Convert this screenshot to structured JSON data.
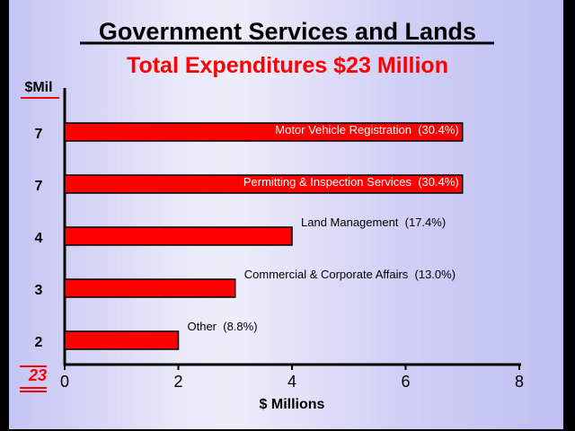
{
  "chart_data": {
    "type": "bar",
    "orientation": "horizontal",
    "title": "Government Services and Lands",
    "subtitle": "Total Expenditures $23 Million",
    "xlabel": "$ Millions",
    "ylabel": "$Mil",
    "xlim": [
      0,
      8
    ],
    "xticks": [
      "0",
      "2",
      "4",
      "6",
      "8"
    ],
    "categories": [
      "Motor Vehicle Registration",
      "Permitting & Inspection Services",
      "Land Management",
      "Commercial & Corporate Affairs",
      "Other"
    ],
    "percents": [
      "(30.4%)",
      "(30.4%)",
      "(17.4%)",
      "(13.0%)",
      "(8.8%)"
    ],
    "values": [
      7,
      7,
      4,
      3,
      2
    ],
    "value_labels": [
      "7",
      "7",
      "4",
      "3",
      "2"
    ],
    "total": "23",
    "bar_color": "#ff0000"
  }
}
